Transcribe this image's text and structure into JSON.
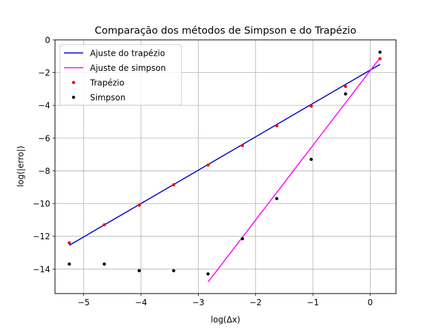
{
  "chart_data": {
    "type": "line",
    "title": "Comparação dos métodos de Simpson e do Trapézio",
    "xlabel": "log(Δx)",
    "ylabel": "log(|erro|)",
    "xlim": [
      -5.5,
      0.45
    ],
    "ylim": [
      -15.5,
      0
    ],
    "xticks": [
      -5,
      -4,
      -3,
      -2,
      -1,
      0
    ],
    "yticks": [
      0,
      -2,
      -4,
      -6,
      -8,
      -10,
      -12,
      -14
    ],
    "xtick_labels": [
      "−5",
      "−4",
      "−3",
      "−2",
      "−1",
      "0"
    ],
    "ytick_labels": [
      "0",
      "−2",
      "−4",
      "−6",
      "−8",
      "−10",
      "−12",
      "−14"
    ],
    "grid": true,
    "legend_position": "top-left",
    "series": [
      {
        "name": "Ajuste do trapézio",
        "kind": "line",
        "color": "#0000cd",
        "x": [
          -5.25,
          0.17
        ],
        "y": [
          -12.55,
          -1.5
        ]
      },
      {
        "name": "Ajuste de simpson",
        "kind": "line",
        "color": "#ff00ff",
        "x": [
          -2.83,
          0.17
        ],
        "y": [
          -14.8,
          -1.1
        ]
      },
      {
        "name": "Trapézio",
        "kind": "scatter",
        "color": "#ff0000",
        "x": [
          -5.25,
          -4.64,
          -4.03,
          -3.43,
          -2.83,
          -2.23,
          -1.63,
          -1.03,
          -0.43,
          0.17
        ],
        "y": [
          -12.4,
          -11.3,
          -10.1,
          -8.85,
          -7.65,
          -6.45,
          -5.25,
          -4.05,
          -2.85,
          -1.15
        ]
      },
      {
        "name": "Simpson",
        "kind": "scatter",
        "color": "#000000",
        "x": [
          -5.25,
          -4.64,
          -4.03,
          -3.43,
          -2.83,
          -2.23,
          -1.63,
          -1.03,
          -0.43,
          0.17
        ],
        "y": [
          -13.7,
          -13.7,
          -14.1,
          -14.1,
          -14.3,
          -12.15,
          -9.7,
          -7.3,
          -3.3,
          -0.75
        ]
      }
    ]
  }
}
